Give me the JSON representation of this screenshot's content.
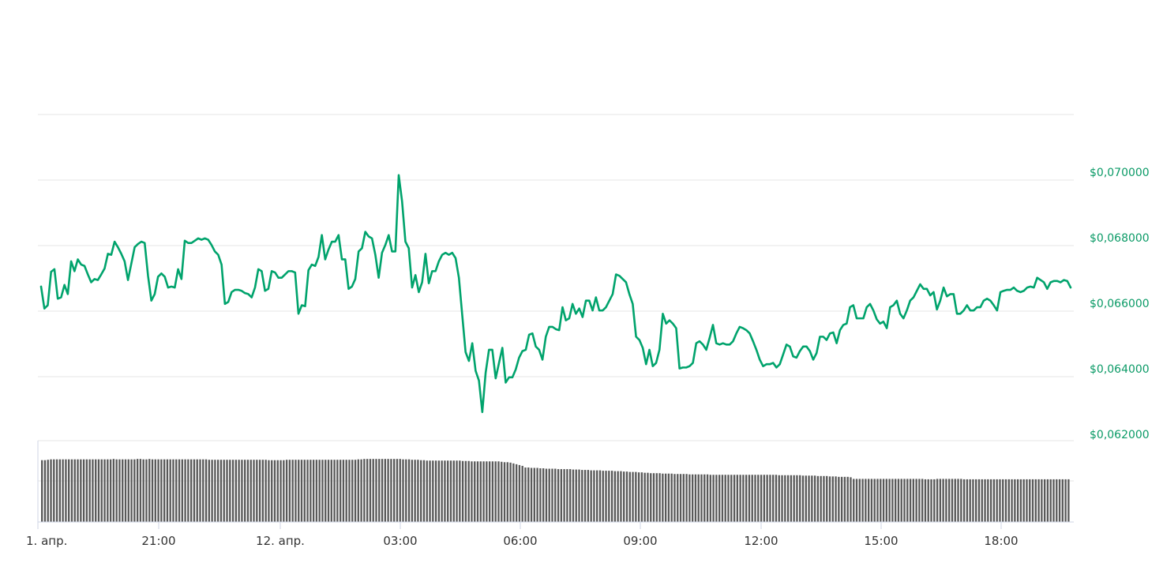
{
  "chart_data": {
    "type": "line",
    "x_tick_labels": [
      "1. апр.",
      "21:00",
      "12. апр.",
      "03:00",
      "06:00",
      "09:00",
      "12:00",
      "15:00",
      "18:00"
    ],
    "y_tick_labels": [
      "$0,062000",
      "$0,064000",
      "$0,066000",
      "$0,068000",
      "$0,070000"
    ],
    "ylim": [
      0.0612,
      0.0722
    ],
    "y_ticks": [
      0.062,
      0.064,
      0.066,
      0.068,
      0.07
    ],
    "grid": true,
    "colors": {
      "line": "#00a36c",
      "volume": "#595959",
      "grid": "#e6e6e6",
      "ytick": "#0a9a66"
    },
    "series": [
      {
        "values": [
          0.06675,
          0.06608,
          0.06618,
          0.0672,
          0.06728,
          0.06638,
          0.06642,
          0.0668,
          0.06652,
          0.06752,
          0.06722,
          0.06758,
          0.06742,
          0.06738,
          0.06712,
          0.06688,
          0.06698,
          0.06695,
          0.06712,
          0.0673,
          0.06775,
          0.06772,
          0.06812,
          0.06795,
          0.06775,
          0.06752,
          0.06695,
          0.06745,
          0.06795,
          0.06805,
          0.06812,
          0.06808,
          0.06708,
          0.06632,
          0.06652,
          0.06705,
          0.06715,
          0.06705,
          0.06672,
          0.06675,
          0.06672,
          0.06728,
          0.06698,
          0.06815,
          0.06808,
          0.06808,
          0.06815,
          0.06822,
          0.06818,
          0.06822,
          0.06818,
          0.06802,
          0.06782,
          0.06772,
          0.06742,
          0.06622,
          0.06628,
          0.06658,
          0.06665,
          0.06665,
          0.06662,
          0.06655,
          0.06652,
          0.06642,
          0.06672,
          0.06728,
          0.06722,
          0.06662,
          0.06668,
          0.06722,
          0.06718,
          0.06702,
          0.06702,
          0.06712,
          0.06722,
          0.06722,
          0.06718,
          0.06592,
          0.06618,
          0.06615,
          0.06725,
          0.06742,
          0.06738,
          0.06765,
          0.06832,
          0.06758,
          0.06788,
          0.06812,
          0.06812,
          0.06832,
          0.06758,
          0.06758,
          0.06668,
          0.06675,
          0.06698,
          0.06782,
          0.06792,
          0.06842,
          0.06828,
          0.06822,
          0.06772,
          0.06702,
          0.06778,
          0.06802,
          0.06832,
          0.06782,
          0.06782,
          0.07015,
          0.06935,
          0.06812,
          0.06792,
          0.06672,
          0.0671,
          0.06658,
          0.06688,
          0.06775,
          0.06685,
          0.06722,
          0.06722,
          0.06752,
          0.06772,
          0.06778,
          0.06772,
          0.06778,
          0.06762,
          0.06702,
          0.06588,
          0.06475,
          0.06448,
          0.06502,
          0.06418,
          0.06388,
          0.06292,
          0.06412,
          0.06482,
          0.06482,
          0.06395,
          0.06442,
          0.06488,
          0.06382,
          0.06398,
          0.06398,
          0.06422,
          0.06458,
          0.06478,
          0.06482,
          0.06528,
          0.06532,
          0.06492,
          0.06482,
          0.06452,
          0.06522,
          0.06552,
          0.06552,
          0.06545,
          0.06542,
          0.06612,
          0.06572,
          0.06578,
          0.06622,
          0.06592,
          0.06608,
          0.06582,
          0.06632,
          0.06632,
          0.06602,
          0.06642,
          0.06602,
          0.06602,
          0.06612,
          0.06632,
          0.06652,
          0.06712,
          0.06708,
          0.06698,
          0.06688,
          0.06652,
          0.06622,
          0.06522,
          0.06512,
          0.06488,
          0.06438,
          0.06482,
          0.06432,
          0.06442,
          0.06482,
          0.06592,
          0.06562,
          0.06572,
          0.06562,
          0.06548,
          0.06425,
          0.06428,
          0.06428,
          0.06432,
          0.06442,
          0.06502,
          0.06508,
          0.06498,
          0.06482,
          0.06518,
          0.06558,
          0.06502,
          0.06498,
          0.06502,
          0.06498,
          0.06498,
          0.06508,
          0.06532,
          0.06552,
          0.06548,
          0.06542,
          0.06532,
          0.06508,
          0.06482,
          0.06452,
          0.06432,
          0.06438,
          0.06438,
          0.06442,
          0.06428,
          0.06438,
          0.06468,
          0.06498,
          0.06492,
          0.06462,
          0.06458,
          0.06478,
          0.06492,
          0.06492,
          0.06478,
          0.06452,
          0.06472,
          0.06522,
          0.06522,
          0.06512,
          0.06532,
          0.06535,
          0.06502,
          0.06542,
          0.06558,
          0.06562,
          0.06612,
          0.06618,
          0.06578,
          0.06578,
          0.06578,
          0.06612,
          0.06622,
          0.06602,
          0.06575,
          0.06562,
          0.06568,
          0.06548,
          0.06612,
          0.06618,
          0.06632,
          0.06592,
          0.06578,
          0.06602,
          0.06632,
          0.06642,
          0.06662,
          0.06682,
          0.06668,
          0.06668,
          0.06648,
          0.06658,
          0.06605,
          0.06632,
          0.06672,
          0.06645,
          0.06652,
          0.06652,
          0.06592,
          0.06592,
          0.06602,
          0.06618,
          0.06602,
          0.06602,
          0.06612,
          0.06612,
          0.06632,
          0.06638,
          0.06632,
          0.06618,
          0.06602,
          0.06658,
          0.06662,
          0.06665,
          0.06665,
          0.06672,
          0.06662,
          0.06658,
          0.06662,
          0.06672,
          0.06675,
          0.06672,
          0.06702,
          0.06695,
          0.06688,
          0.06668,
          0.06688,
          0.06692,
          0.06692,
          0.06688,
          0.06695,
          0.06692,
          0.06672
        ]
      }
    ],
    "volume": [
      0.76,
      0.76,
      0.765,
      0.77,
      0.77,
      0.77,
      0.77,
      0.77,
      0.77,
      0.77,
      0.77,
      0.77,
      0.77,
      0.77,
      0.77,
      0.77,
      0.77,
      0.77,
      0.77,
      0.77,
      0.77,
      0.77,
      0.77,
      0.77,
      0.775,
      0.77,
      0.77,
      0.77,
      0.77,
      0.77,
      0.77,
      0.77,
      0.775,
      0.775,
      0.77,
      0.77,
      0.775,
      0.77,
      0.77,
      0.77,
      0.77,
      0.77,
      0.77,
      0.77,
      0.77,
      0.77,
      0.77,
      0.77,
      0.77,
      0.77,
      0.77,
      0.77,
      0.77,
      0.77,
      0.77,
      0.77,
      0.765,
      0.765,
      0.765,
      0.765,
      0.765,
      0.765,
      0.765,
      0.765,
      0.765,
      0.765,
      0.765,
      0.765,
      0.765,
      0.765,
      0.765,
      0.765,
      0.765,
      0.765,
      0.765,
      0.765,
      0.76,
      0.76,
      0.76,
      0.76,
      0.76,
      0.76,
      0.765,
      0.765,
      0.765,
      0.765,
      0.765,
      0.765,
      0.765,
      0.765,
      0.765,
      0.765,
      0.765,
      0.765,
      0.765,
      0.765,
      0.765,
      0.765,
      0.765,
      0.765,
      0.765,
      0.765,
      0.765,
      0.765,
      0.765,
      0.765,
      0.77,
      0.77,
      0.775,
      0.775,
      0.775,
      0.775,
      0.775,
      0.775,
      0.775,
      0.775,
      0.775,
      0.775,
      0.775,
      0.775,
      0.775,
      0.77,
      0.77,
      0.77,
      0.765,
      0.765,
      0.765,
      0.76,
      0.76,
      0.755,
      0.755,
      0.755,
      0.755,
      0.755,
      0.755,
      0.755,
      0.755,
      0.755,
      0.755,
      0.755,
      0.755,
      0.75,
      0.75,
      0.75,
      0.745,
      0.745,
      0.745,
      0.745,
      0.745,
      0.745,
      0.745,
      0.745,
      0.745,
      0.745,
      0.74,
      0.735,
      0.735,
      0.73,
      0.72,
      0.71,
      0.7,
      0.69,
      0.67,
      0.67,
      0.665,
      0.665,
      0.665,
      0.66,
      0.66,
      0.655,
      0.655,
      0.655,
      0.655,
      0.65,
      0.65,
      0.65,
      0.65,
      0.65,
      0.645,
      0.645,
      0.645,
      0.64,
      0.64,
      0.64,
      0.635,
      0.635,
      0.635,
      0.635,
      0.63,
      0.63,
      0.63,
      0.63,
      0.625,
      0.625,
      0.625,
      0.62,
      0.62,
      0.615,
      0.615,
      0.615,
      0.61,
      0.61,
      0.605,
      0.605,
      0.6,
      0.6,
      0.6,
      0.6,
      0.595,
      0.595,
      0.595,
      0.595,
      0.59,
      0.59,
      0.59,
      0.59,
      0.59,
      0.585,
      0.585,
      0.585,
      0.585,
      0.585,
      0.585,
      0.585,
      0.58,
      0.58,
      0.58,
      0.58,
      0.58,
      0.58,
      0.58,
      0.58,
      0.58,
      0.58,
      0.58,
      0.58,
      0.58,
      0.58,
      0.58,
      0.58,
      0.58,
      0.58,
      0.58,
      0.58,
      0.58,
      0.58,
      0.58,
      0.575,
      0.575,
      0.575,
      0.575,
      0.575,
      0.575,
      0.575,
      0.575,
      0.57,
      0.57,
      0.57,
      0.57,
      0.57,
      0.565,
      0.565,
      0.565,
      0.565,
      0.56,
      0.56,
      0.56,
      0.555,
      0.555,
      0.555,
      0.555,
      0.55,
      0.53,
      0.53,
      0.53,
      0.53,
      0.53,
      0.53,
      0.53,
      0.53,
      0.53,
      0.53,
      0.53,
      0.53,
      0.53,
      0.53,
      0.53,
      0.53,
      0.53,
      0.53,
      0.53,
      0.53,
      0.53,
      0.53,
      0.53,
      0.53,
      0.525,
      0.525,
      0.525,
      0.525,
      0.53,
      0.53,
      0.53,
      0.53,
      0.53,
      0.53,
      0.53,
      0.53,
      0.53,
      0.525,
      0.525,
      0.525,
      0.525,
      0.525,
      0.525,
      0.525,
      0.525,
      0.525,
      0.525,
      0.525,
      0.525,
      0.525,
      0.525,
      0.525,
      0.525,
      0.525,
      0.525,
      0.525,
      0.525,
      0.525,
      0.525,
      0.525,
      0.525,
      0.525,
      0.525,
      0.525,
      0.525,
      0.525,
      0.525,
      0.525,
      0.525,
      0.525,
      0.525,
      0.525,
      0.525
    ]
  }
}
